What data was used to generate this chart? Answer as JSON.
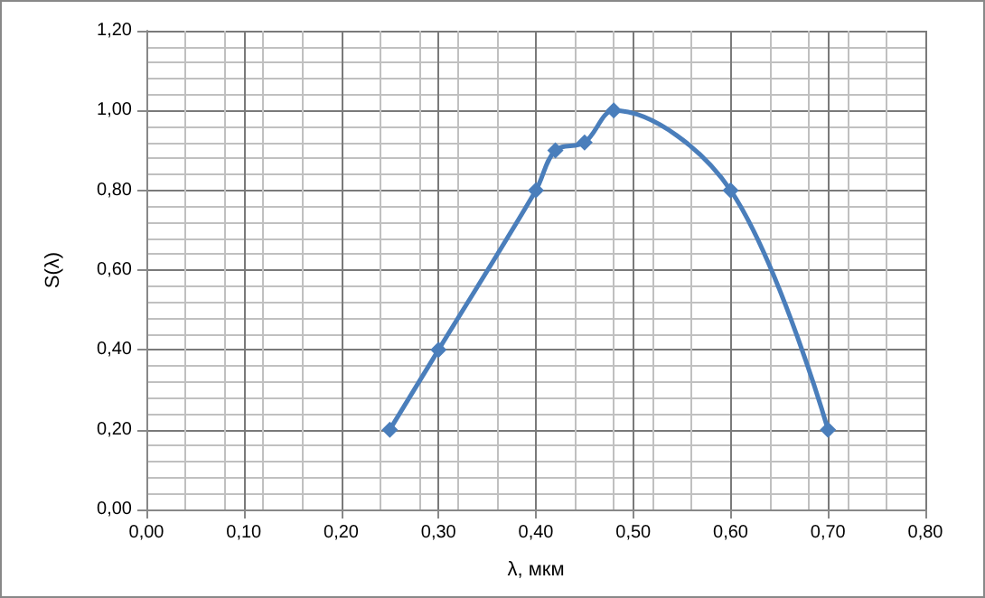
{
  "chart_data": {
    "type": "line",
    "xlabel": "λ, мкм",
    "ylabel": "S(λ)",
    "x": [
      0.25,
      0.3,
      0.4,
      0.42,
      0.45,
      0.48,
      0.6,
      0.7
    ],
    "series": [
      {
        "color": "#4a7ebb",
        "values": [
          0.2,
          0.4,
          0.8,
          0.9,
          0.92,
          1.0,
          0.8,
          0.2
        ]
      }
    ],
    "xlim": [
      0,
      0.8
    ],
    "xticks": [
      {
        "value": 0,
        "label": "0,00"
      },
      {
        "value": 0.1,
        "label": "0,10"
      },
      {
        "value": 0.2,
        "label": "0,20"
      },
      {
        "value": 0.3,
        "label": "0,30"
      },
      {
        "value": 0.4,
        "label": "0,40"
      },
      {
        "value": 0.5,
        "label": "0,50"
      },
      {
        "value": 0.6,
        "label": "0,60"
      },
      {
        "value": 0.7,
        "label": "0,70"
      },
      {
        "value": 0.8,
        "label": "0,80"
      }
    ],
    "ylim": [
      0,
      1.2
    ],
    "yticks": [
      {
        "value": 0,
        "label": "0,00"
      },
      {
        "value": 0.2,
        "label": "0,20"
      },
      {
        "value": 0.4,
        "label": "0,40"
      },
      {
        "value": 0.6,
        "label": "0,60"
      },
      {
        "value": 0.8,
        "label": "0,80"
      },
      {
        "value": 1.0,
        "label": "1,00"
      },
      {
        "value": 1.2,
        "label": "1,20"
      }
    ],
    "grid": true,
    "marker": "diamond"
  }
}
